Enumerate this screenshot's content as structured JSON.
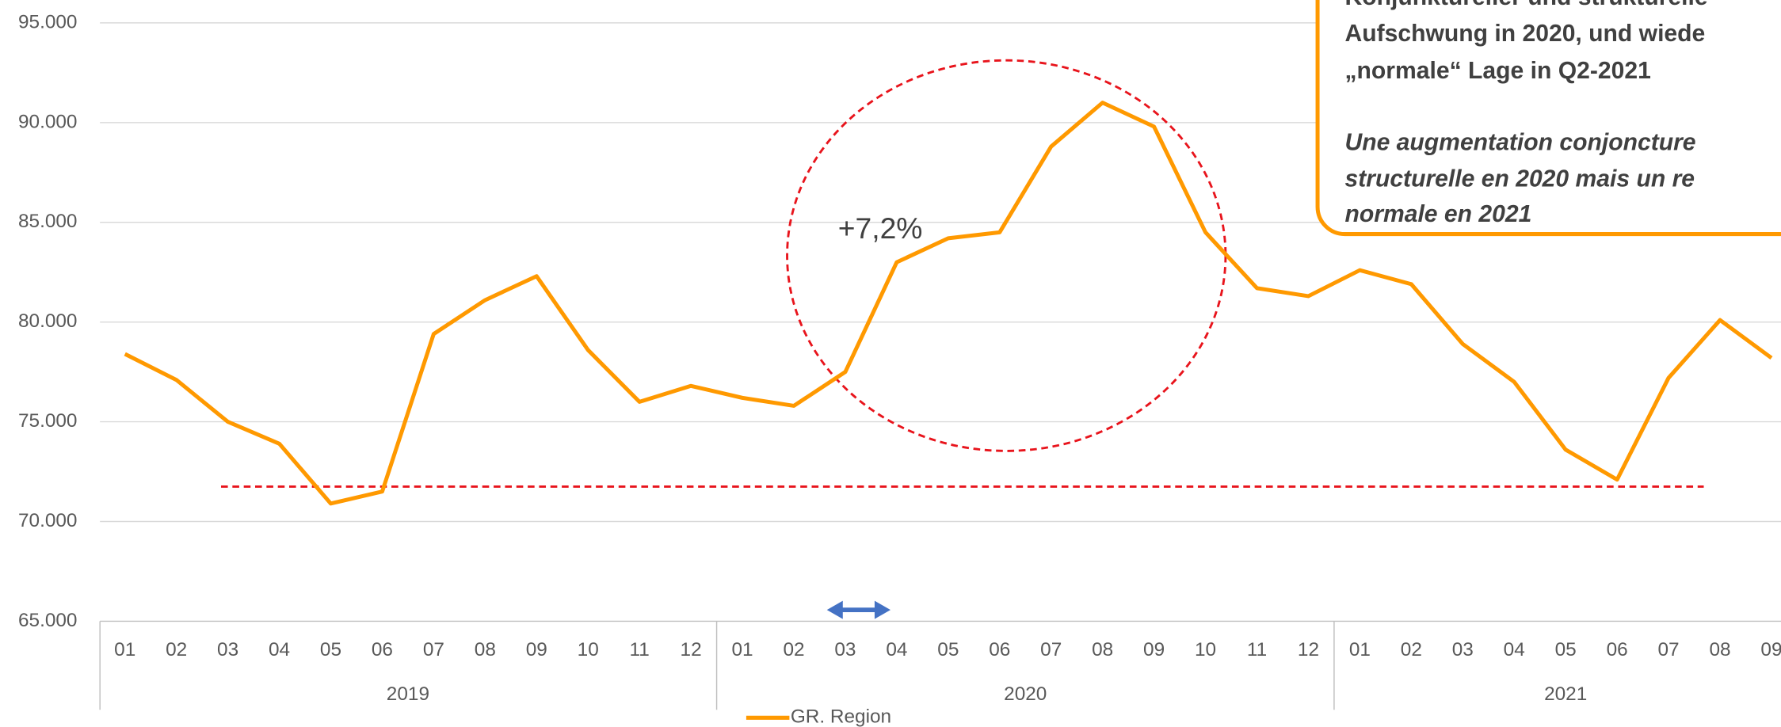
{
  "chart_data": {
    "type": "line",
    "categories": [
      "01",
      "02",
      "03",
      "04",
      "05",
      "06",
      "07",
      "08",
      "09",
      "10",
      "11",
      "12",
      "01",
      "02",
      "03",
      "04",
      "05",
      "06",
      "07",
      "08",
      "09",
      "10",
      "11",
      "12",
      "01",
      "02",
      "03",
      "04",
      "05",
      "06",
      "07",
      "08",
      "09"
    ],
    "year_groups": [
      {
        "label": "2019",
        "count": 12
      },
      {
        "label": "2020",
        "count": 12
      },
      {
        "label": "2021",
        "count": 9
      }
    ],
    "series": [
      {
        "name": "GR. Region",
        "color": "#ff9900",
        "values": [
          78400,
          77100,
          75000,
          73900,
          70900,
          71500,
          79400,
          81100,
          82300,
          78600,
          76000,
          76800,
          76200,
          75800,
          77500,
          83000,
          84200,
          84500,
          88800,
          91000,
          89800,
          84500,
          81700,
          81300,
          82600,
          81900,
          78900,
          77000,
          73600,
          72100,
          77200,
          80100,
          78200
        ]
      }
    ],
    "ylim": [
      65000,
      95000
    ],
    "yticks": [
      {
        "value": 65000,
        "label": "65.000"
      },
      {
        "value": 70000,
        "label": "70.000"
      },
      {
        "value": 75000,
        "label": "75.000"
      },
      {
        "value": 80000,
        "label": "80.000"
      },
      {
        "value": 85000,
        "label": "85.000"
      },
      {
        "value": 90000,
        "label": "90.000"
      },
      {
        "value": 95000,
        "label": "95.000"
      }
    ],
    "grid": true,
    "reference_line": {
      "value": 71750,
      "color": "#e8141c"
    },
    "annotation": "+7,2%",
    "callout": {
      "lines": [
        "Konjunktureller und strukturelle",
        "Aufschwung in 2020, und wiede",
        "„normale“ Lage in Q2-2021"
      ],
      "lines_fr": [
        "Une augmentation conjoncture",
        "structurelle en 2020 mais un re",
        "normale en 2021"
      ]
    }
  }
}
